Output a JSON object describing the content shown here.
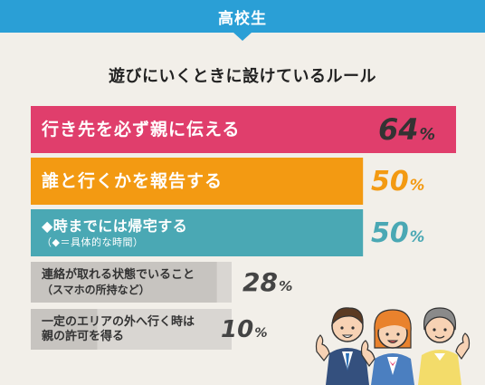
{
  "header": {
    "title": "高校生"
  },
  "colors": {
    "header": "#2a9fd6",
    "bar1": "#e03e6c",
    "bar2": "#f39a12",
    "bar3": "#4aa8b4",
    "bar_gray": "#d9d6d2",
    "bar_gray_fill": "#c7c4c0"
  },
  "chart_data": {
    "type": "bar",
    "title": "遊びにいくときに設けているルール",
    "unit": "%",
    "categories": [
      "行き先を必ず親に伝える",
      "誰と行くかを報告する",
      "◆時までには帰宅する",
      "連絡が取れる状態でいること",
      "一定のエリアの外へ行く時は 親の許可を得る"
    ],
    "sublabels": [
      "",
      "",
      "（◆＝具体的な時間）",
      "（スマホの所持など）",
      ""
    ],
    "values": [
      64,
      50,
      50,
      28,
      10
    ],
    "value_labels": [
      "64",
      "50",
      "50",
      "28",
      "10"
    ]
  }
}
